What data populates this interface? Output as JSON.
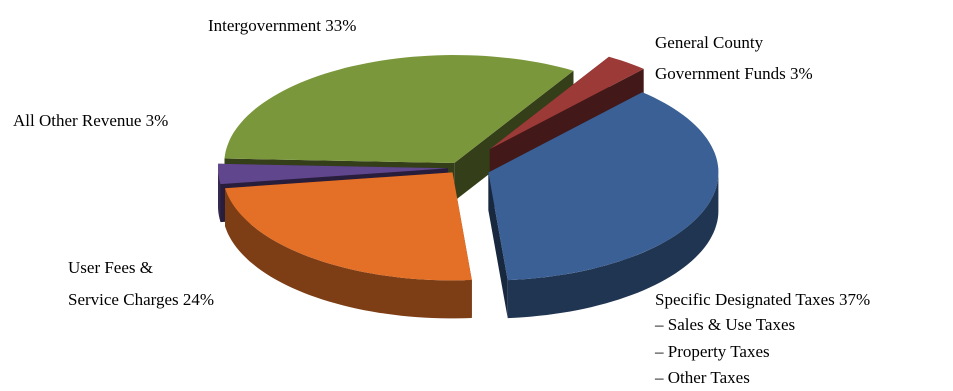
{
  "chart_data": {
    "type": "pie",
    "title": "",
    "unit": "%",
    "slices": [
      {
        "key": "specific",
        "label": "Specific Designated Taxes",
        "value": 37,
        "value_text": "37%",
        "color": "#3A6095",
        "sub_items": [
          "– Sales & Use Taxes",
          "– Property Taxes",
          "– Other Taxes"
        ]
      },
      {
        "key": "user-fees",
        "label_lines": [
          "User Fees &",
          "Service Charges"
        ],
        "value": 24,
        "value_text": "24%",
        "color": "#E46F26"
      },
      {
        "key": "other-rev",
        "label": "All Other Revenue",
        "value": 3,
        "value_text": "3%",
        "color": "#60468C"
      },
      {
        "key": "intergov",
        "label": "Intergovernment",
        "value": 33,
        "value_text": "33%",
        "color": "#7B973B"
      },
      {
        "key": "county",
        "label_lines": [
          "General County",
          "Government Funds"
        ],
        "value": 3,
        "value_text": "3%",
        "color": "#9C3A38"
      }
    ]
  }
}
